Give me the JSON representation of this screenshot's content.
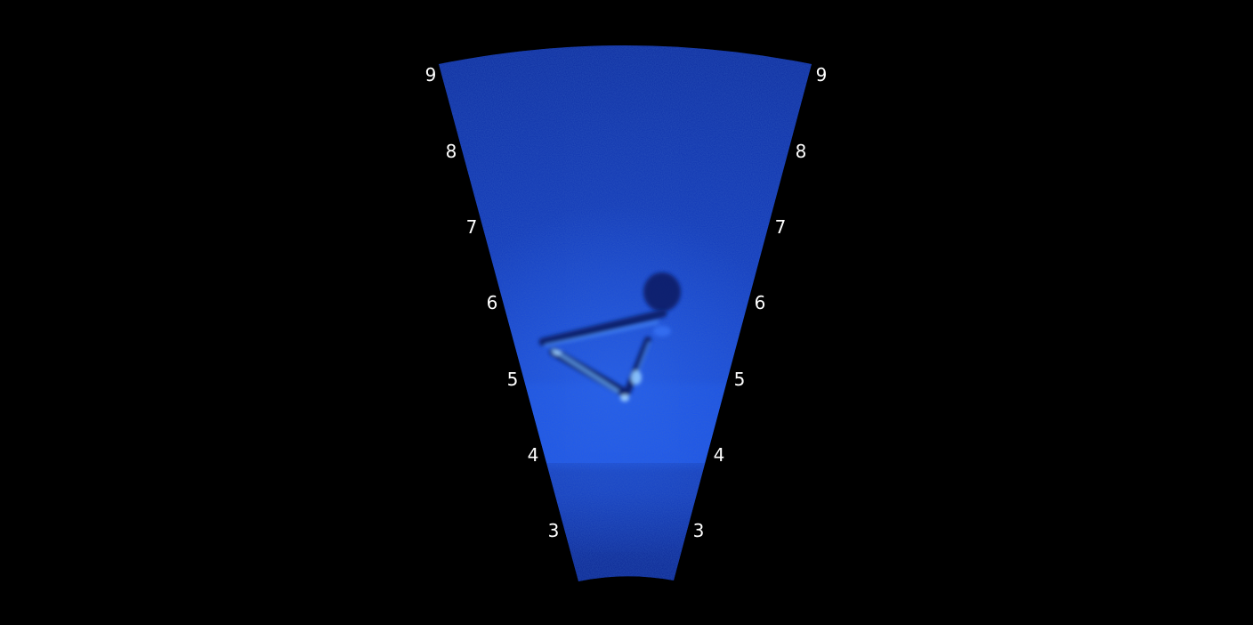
{
  "viewer": {
    "display_mode": "sonar-fan",
    "palette": {
      "background": "#000000",
      "water_far": "#0a2fb0",
      "water_mid": "#1240d8",
      "water_near": "#1a5cff",
      "target_highlight": "#6fb4ff",
      "shadow": "#0a1a66",
      "label": "#ffffff"
    },
    "range_labels_left": [
      "9",
      "8",
      "7",
      "6",
      "5",
      "4",
      "3"
    ],
    "range_labels_right": [
      "9",
      "8",
      "7",
      "6",
      "5",
      "4",
      "3"
    ]
  }
}
